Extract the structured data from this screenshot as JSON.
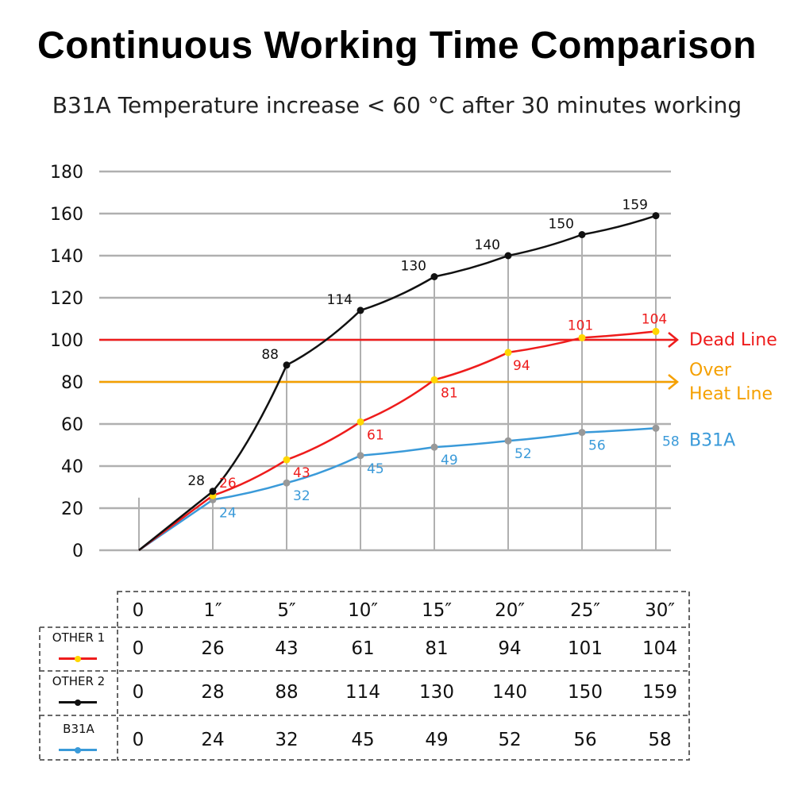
{
  "title": "Continuous Working Time Comparison",
  "subtitle": "B31A Temperature increase < 60 °C after 30 minutes working",
  "chart_data": {
    "type": "line",
    "title": "Continuous Working Time Comparison",
    "subtitle": "B31A Temperature increase < 60 °C after 30 minutes working",
    "categories": [
      "0",
      "1″",
      "5″",
      "10″",
      "15″",
      "20″",
      "25″",
      "30″"
    ],
    "ylim": [
      0,
      180
    ],
    "yticks": [
      0,
      20,
      40,
      60,
      80,
      100,
      120,
      140,
      160,
      180
    ],
    "grid": true,
    "series": [
      {
        "name": "OTHER 1",
        "values": [
          0,
          26,
          43,
          61,
          81,
          94,
          101,
          104
        ],
        "color": "#ee1c1c",
        "marker": "#ffd700"
      },
      {
        "name": "OTHER 2",
        "values": [
          0,
          28,
          88,
          114,
          130,
          140,
          150,
          159
        ],
        "color": "#111111",
        "marker": "#111111"
      },
      {
        "name": "B31A",
        "values": [
          0,
          24,
          32,
          45,
          49,
          52,
          56,
          58
        ],
        "color": "#3a9ad9",
        "marker": "#999999"
      }
    ],
    "reference_lines": [
      {
        "label": "Dead Line",
        "value": 100,
        "color": "#ee1c1c"
      },
      {
        "label": "Over Heat Line",
        "value": 80,
        "color": "#f5a000"
      }
    ],
    "series_label": {
      "text": "B31A",
      "color": "#3a9ad9"
    }
  },
  "table": {
    "headers": [
      "0",
      "1″",
      "5″",
      "10″",
      "15″",
      "20″",
      "25″",
      "30″"
    ],
    "rows": [
      {
        "label": "OTHER 1",
        "values": [
          "0",
          "26",
          "43",
          "61",
          "81",
          "94",
          "101",
          "104"
        ]
      },
      {
        "label": "OTHER 2",
        "values": [
          "0",
          "28",
          "88",
          "114",
          "130",
          "140",
          "150",
          "159"
        ]
      },
      {
        "label": "B31A",
        "values": [
          "0",
          "24",
          "32",
          "45",
          "49",
          "52",
          "56",
          "58"
        ]
      }
    ]
  }
}
